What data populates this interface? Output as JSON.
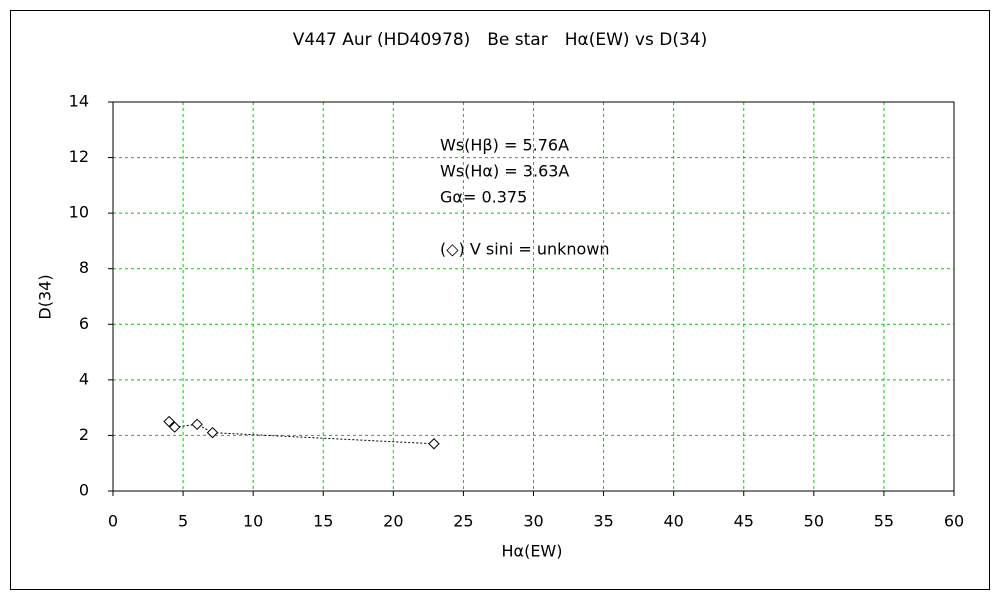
{
  "chart_data": {
    "type": "scatter",
    "title": "V447 Aur (HD40978)　Be star　Hα(EW) vs D(34)",
    "x_label": "Hα(EW)",
    "y_label": "D(34)",
    "annotations": [
      "Ws(Hβ) = 5.76A",
      "Ws(Hα) = 3.63A",
      "Gα= 0.375",
      "(◇) V sini = unknown"
    ],
    "x": [
      4.0,
      4.4,
      6.0,
      7.1,
      22.9
    ],
    "values": [
      2.5,
      2.3,
      2.4,
      2.1,
      1.7
    ],
    "color": "#000000",
    "marker": "diamond",
    "line": "dotted",
    "xlim": [
      0,
      60
    ],
    "xticks": [
      0,
      5,
      10,
      15,
      20,
      25,
      30,
      35,
      40,
      45,
      50,
      55,
      60
    ],
    "ylim": [
      0,
      14
    ],
    "yticks": [
      0,
      2,
      4,
      6,
      8,
      10,
      12,
      14
    ],
    "grid": true,
    "grid_color": "#00cc00"
  }
}
